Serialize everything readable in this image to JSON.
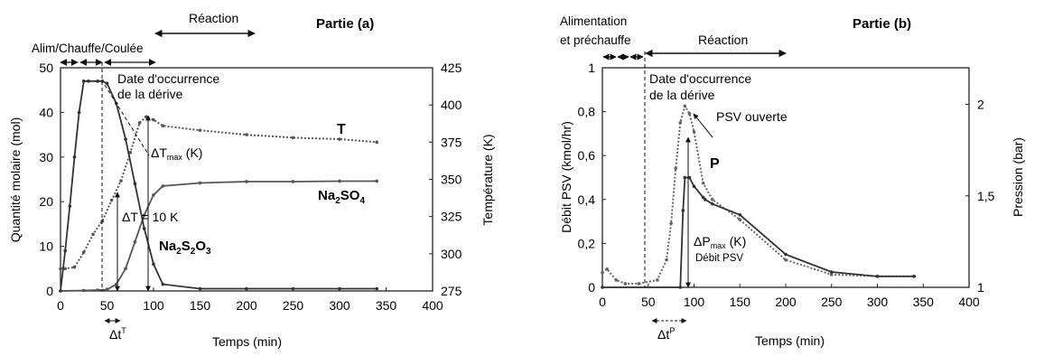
{
  "chart_data": [
    {
      "type": "line",
      "panel_label": "Partie (a)",
      "phase_labels": {
        "top": "Réaction",
        "bottom": "Alim/Chauffe/Coulée"
      },
      "xlabel": "Temps (min)",
      "ylabel_left": "Quantité molaire (mol)",
      "ylabel_right": "Température (K)",
      "xlim": [
        0,
        400
      ],
      "ylim_left": [
        0,
        50
      ],
      "ylim_right": [
        275,
        425
      ],
      "x_ticks": [
        "0",
        "50",
        "100",
        "150",
        "200",
        "250",
        "300",
        "350",
        "400"
      ],
      "y_ticks_left": [
        "0",
        "10",
        "20",
        "30",
        "40",
        "50"
      ],
      "y_ticks_right": [
        "275",
        "300",
        "325",
        "350",
        "375",
        "400",
        "425"
      ],
      "annotations": {
        "onset": "Date d'occurrence",
        "onset_2": "de la dérive",
        "dtmax": "ΔT",
        "dtmax_sub": "max",
        "dtmax_unit": " (K)",
        "dt10": "ΔT = 10 K",
        "dt_t": "Δt",
        "dt_t_sup": "T"
      },
      "series": [
        {
          "name": "T",
          "axis": "right",
          "color": "#555555",
          "x": [
            0,
            5,
            15,
            25,
            35,
            45,
            55,
            65,
            75,
            85,
            92,
            100,
            110,
            150,
            200,
            250,
            300,
            340
          ],
          "y": [
            290,
            290,
            291,
            301,
            313,
            322,
            336,
            349,
            368,
            388,
            392,
            390,
            386,
            383,
            380,
            378,
            377,
            375
          ]
        },
        {
          "name": "Na2SO4",
          "axis": "left",
          "color": "#555555",
          "x": [
            0,
            25,
            40,
            50,
            60,
            70,
            80,
            90,
            100,
            110,
            150,
            200,
            250,
            300,
            340
          ],
          "y": [
            0,
            0.1,
            0.2,
            0.3,
            1.5,
            5,
            11,
            17,
            21.5,
            23.5,
            24.2,
            24.5,
            24.5,
            24.6,
            24.6
          ]
        },
        {
          "name": "Na2S2O3",
          "axis": "left",
          "color": "#333333",
          "x": [
            0,
            5,
            10,
            15,
            20,
            25,
            30,
            40,
            45,
            50,
            60,
            70,
            80,
            90,
            100,
            110,
            150,
            200,
            250,
            300,
            340
          ],
          "y": [
            0,
            9,
            19,
            30,
            40,
            47,
            47,
            47,
            47,
            46.5,
            42,
            34,
            24,
            14,
            6,
            1.5,
            0.5,
            0.5,
            0.5,
            0.5,
            0.5
          ]
        }
      ],
      "labels": {
        "T": "T",
        "Na2SO4": {
          "a": "Na",
          "b": "2",
          "c": "SO",
          "d": "4"
        },
        "Na2S2O3": {
          "a": "Na",
          "b": "2",
          "c": "S",
          "d": "2",
          "e": "O",
          "f": "3"
        }
      }
    },
    {
      "type": "line",
      "panel_label": "Partie (b)",
      "phase_labels": {
        "feed_1": "Alimentation",
        "feed_2": "et préchauffe",
        "reaction": "Réaction"
      },
      "xlabel": "Temps (min)",
      "ylabel_left": "Débit PSV (kmol/hr)",
      "ylabel_right": "Pression (bar)",
      "xlim": [
        0,
        400
      ],
      "ylim_left": [
        0,
        1
      ],
      "ylim_right": [
        1,
        2.2
      ],
      "x_ticks": [
        "0",
        "50",
        "100",
        "150",
        "200",
        "250",
        "300",
        "350",
        "400"
      ],
      "y_ticks_left": [
        "0",
        "0,2",
        "0,4",
        "0,6",
        "0,8",
        "1"
      ],
      "y_ticks_right": [
        {
          "v": 1,
          "t": "1"
        },
        {
          "v": 1.5,
          "t": "1,5"
        },
        {
          "v": 2,
          "t": "2"
        }
      ],
      "annotations": {
        "onset": "Date d'occurrence",
        "onset_2": "de la dérive",
        "psv_open": "PSV ouverte",
        "dpmax": "ΔP",
        "dpmax_sub": "max",
        "dpmax_unit": " (K)",
        "debit": "Débit PSV",
        "dt_p": "Δt",
        "dt_p_sup": "P",
        "P": "P"
      },
      "series": [
        {
          "name": "P",
          "axis": "right",
          "color": "#666666",
          "x": [
            0,
            5,
            15,
            25,
            40,
            60,
            70,
            75,
            80,
            85,
            90,
            95,
            100,
            110,
            120,
            150,
            200,
            250,
            300,
            340
          ],
          "y": [
            1.08,
            1.1,
            1.04,
            1.02,
            1.02,
            1.04,
            1.15,
            1.35,
            1.65,
            1.9,
            1.99,
            1.95,
            1.85,
            1.57,
            1.48,
            1.37,
            1.15,
            1.07,
            1.06,
            1.06
          ]
        },
        {
          "name": "Débit PSV",
          "axis": "left",
          "color": "#333333",
          "x": [
            0,
            85,
            88,
            90,
            95,
            100,
            110,
            112,
            120,
            150,
            200,
            250,
            300,
            340
          ],
          "y": [
            0,
            0,
            0.35,
            0.5,
            0.5,
            0.46,
            0.41,
            0.4,
            0.38,
            0.33,
            0.15,
            0.07,
            0.05,
            0.05
          ]
        }
      ]
    }
  ]
}
